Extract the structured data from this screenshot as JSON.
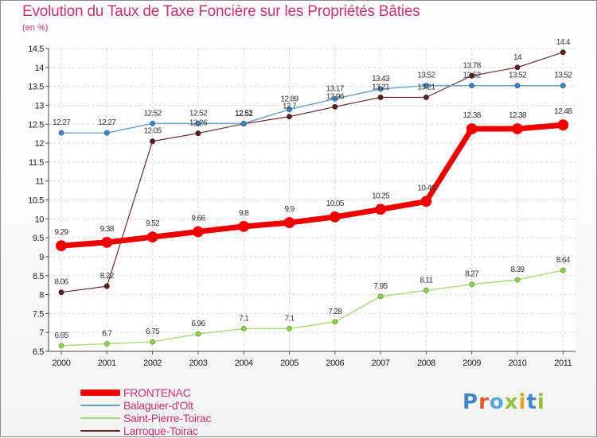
{
  "chart_data": {
    "type": "line",
    "title": "Evolution du Taux de Taxe Foncière sur les Propriétés Bâties",
    "ylabel": "(en %)",
    "xlabel": "",
    "ylim": [
      6.5,
      14.5
    ],
    "yticks": [
      "6.5",
      "7",
      "7.5",
      "8",
      "8.5",
      "9",
      "9.5",
      "10",
      "10.5",
      "11",
      "11.5",
      "12",
      "12.5",
      "13",
      "13.5",
      "14",
      "14.5"
    ],
    "categories": [
      "2000",
      "2001",
      "2002",
      "2003",
      "2004",
      "2005",
      "2006",
      "2007",
      "2008",
      "2009",
      "2010",
      "2011"
    ],
    "grid": true,
    "series": [
      {
        "name": "Larroque-Toirac",
        "color": "#5c1f22",
        "values": [
          8.06,
          8.22,
          12.05,
          12.26,
          12.51,
          12.7,
          12.96,
          13.21,
          13.21,
          13.78,
          14,
          14.4
        ],
        "labels": [
          "8.06",
          "8.22",
          "12.05",
          "12.26",
          "12.51",
          "12.7",
          "12.96",
          "13.21",
          "13.21",
          "13.78",
          "14",
          "14.4"
        ]
      },
      {
        "name": "Balaguier-d'Olt",
        "color": "#6aa0c8",
        "values": [
          12.27,
          12.27,
          12.52,
          12.52,
          12.52,
          12.89,
          13.17,
          13.43,
          13.52,
          13.52,
          13.52,
          13.52
        ],
        "labels": [
          "12.27",
          "12.27",
          "12.52",
          "12.52",
          "12.52",
          "12.89",
          "13.17",
          "13.43",
          "13.52",
          "13.52",
          "13.52",
          "13.52"
        ]
      },
      {
        "name": "Saint-Pierre-Toirac",
        "color": "#a8d77c",
        "values": [
          6.65,
          6.7,
          6.75,
          6.96,
          7.1,
          7.1,
          7.28,
          7.95,
          8.11,
          8.27,
          8.39,
          8.64
        ],
        "labels": [
          "6.65",
          "6.7",
          "6.75",
          "6.96",
          "7.1",
          "7.1",
          "7.28",
          "7.95",
          "8.11",
          "8.27",
          "8.39",
          "8.64"
        ]
      },
      {
        "name": "FRONTENAC",
        "color": "#ee0000",
        "values": [
          9.29,
          9.38,
          9.52,
          9.66,
          9.8,
          9.9,
          10.05,
          10.25,
          10.46,
          12.38,
          12.38,
          12.48
        ],
        "labels": [
          "9.29",
          "9.38",
          "9.52",
          "9.66",
          "9.8",
          "9.9",
          "10.05",
          "10.25",
          "10.46",
          "12.38",
          "12.38",
          "12.48"
        ]
      }
    ],
    "legend": [
      {
        "name": "FRONTENAC",
        "color": "#ee0000"
      },
      {
        "name": "Balaguier-d'Olt",
        "color": "#6aa0c8"
      },
      {
        "name": "Saint-Pierre-Toirac",
        "color": "#a8d77c"
      },
      {
        "name": "Larroque-Toirac",
        "color": "#5c1f22"
      }
    ]
  },
  "logo": {
    "text": "Proxiti",
    "letters": [
      {
        "ch": "P",
        "color": "#3f86c6"
      },
      {
        "ch": "r",
        "color": "#e25a2b"
      },
      {
        "ch": "o",
        "color": "#5aa8dc"
      },
      {
        "ch": "x",
        "color": "#8fc040"
      },
      {
        "ch": "i",
        "color": "#e8a020"
      },
      {
        "ch": "t",
        "color": "#3f86c6"
      },
      {
        "ch": "i",
        "color": "#8fc040"
      }
    ]
  }
}
